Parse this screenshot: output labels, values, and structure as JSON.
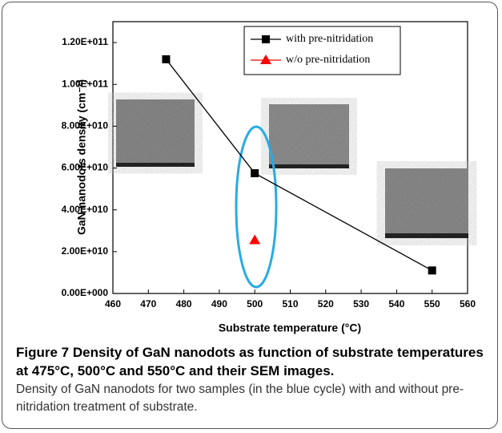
{
  "chart_data": {
    "type": "line",
    "xlabel": "Substrate temperature (°C)",
    "ylabel": "GaN nanodots density (cm⁻²)",
    "xlim": [
      460,
      560
    ],
    "xticks": [
      460,
      470,
      480,
      490,
      500,
      510,
      520,
      530,
      540,
      550,
      560
    ],
    "ylim": [
      0,
      130000000000
    ],
    "yticks": [
      {
        "value": 0,
        "label": "0.00E+000"
      },
      {
        "value": 20000000000,
        "label": "2.00E+010"
      },
      {
        "value": 40000000000,
        "label": "4.00E+010"
      },
      {
        "value": 60000000000,
        "label": "6.00E+010"
      },
      {
        "value": 80000000000,
        "label": "8.00E+010"
      },
      {
        "value": 100000000000,
        "label": "1.00E+011"
      },
      {
        "value": 120000000000,
        "label": "1.20E+011"
      }
    ],
    "grid": false,
    "legend": "upper right",
    "series": [
      {
        "name": "with pre-nitridation",
        "color": "#000000",
        "marker": "square",
        "x": [
          475,
          500,
          550
        ],
        "values": [
          112000000000,
          57500000000,
          11000000000
        ]
      },
      {
        "name": "w/o pre-nitridation",
        "color": "#ff0000",
        "marker": "triangle",
        "x": [
          500
        ],
        "values": [
          25500000000
        ]
      }
    ]
  },
  "caption": {
    "label": "Figure 7",
    "title": "Density of GaN nanodots as function of substrate temperatures at 475°C, 500°C and 550°C and their SEM images.",
    "text": "Density of GaN nanodots for two samples (in the blue cycle) with and without pre-nitridation treatment of substrate."
  }
}
